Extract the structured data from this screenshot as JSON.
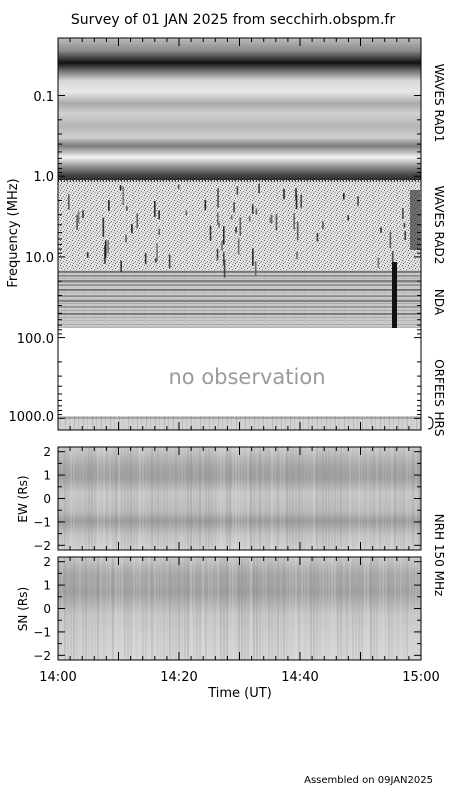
{
  "chart_data": [
    {
      "type": "heatmap",
      "panel": "dynamic-spectrum",
      "title": "Survey of 01 JAN 2025 from secchirh.obspm.fr",
      "ylabel": "Frequency (MHz)",
      "y_scale": "log",
      "y_direction": "increasing-downward",
      "ylim": [
        0.02,
        1300
      ],
      "y_ticks": [
        {
          "value": 0.1,
          "label": "0.1"
        },
        {
          "value": 1,
          "label": "1.0"
        },
        {
          "value": 10,
          "label": "10.0"
        },
        {
          "value": 100,
          "label": "100.0"
        },
        {
          "value": 1000,
          "label": "1000.0"
        }
      ],
      "instruments": [
        {
          "label": "WAVES RAD1",
          "range_mhz": [
            0.02,
            1.0
          ]
        },
        {
          "label": "WAVES RAD2",
          "range_mhz": [
            1.0,
            14.0
          ]
        },
        {
          "label": "NDA",
          "range_mhz": [
            14.0,
            80.0
          ]
        },
        {
          "label": "ORFEES",
          "range_mhz": [
            140,
            1000
          ]
        },
        {
          "label": "HRS",
          "range_mhz": [
            1000,
            1300
          ]
        }
      ],
      "annotation": "no observation",
      "grid": false
    },
    {
      "type": "heatmap",
      "panel": "NRH 150 MHz EW",
      "ylabel": "EW (Rs)",
      "ylim": [
        -2.2,
        2.2
      ],
      "y_ticks": [
        2,
        1,
        0,
        -1,
        -2
      ]
    },
    {
      "type": "heatmap",
      "panel": "NRH 150 MHz SN",
      "ylabel": "SN (Rs)",
      "ylim": [
        -2.2,
        2.2
      ],
      "y_ticks": [
        2,
        1,
        0,
        -1,
        -2
      ]
    }
  ],
  "nrh_label": "NRH 150 MHz",
  "x_axis": {
    "xlabel": "Time (UT)",
    "tick_labels": [
      "14:00",
      "14:20",
      "14:40",
      "15:00"
    ],
    "range_minutes": [
      0,
      60
    ]
  },
  "footer": "Assembled on 09JAN2025"
}
